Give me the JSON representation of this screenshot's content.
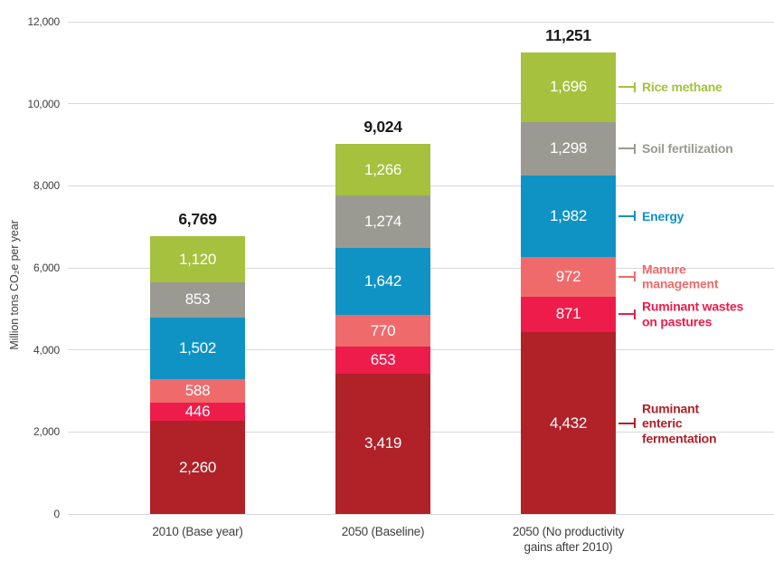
{
  "chart_data": {
    "type": "bar",
    "stacked": true,
    "ylabel": "Million tons CO₂e per year",
    "ylim": [
      0,
      12000
    ],
    "grid": true,
    "legend_position": "right",
    "yticks": [
      {
        "value": 0,
        "label": "0"
      },
      {
        "value": 2000,
        "label": "2,000"
      },
      {
        "value": 4000,
        "label": "4,000"
      },
      {
        "value": 6000,
        "label": "6,000"
      },
      {
        "value": 8000,
        "label": "8,000"
      },
      {
        "value": 10000,
        "label": "10,000"
      },
      {
        "value": 12000,
        "label": "12,000"
      }
    ],
    "categories": [
      [
        "2010 (Base year)"
      ],
      [
        "2050 (Baseline)"
      ],
      [
        "2050 (No productivity",
        "gains after 2010)"
      ]
    ],
    "totals": [
      "6,769",
      "9,024",
      "11,251"
    ],
    "series": [
      {
        "name": "Ruminant enteric fermentation",
        "legend_lines": [
          "Ruminant",
          "enteric",
          "fermentation"
        ],
        "color": "#b02128",
        "values": [
          2260,
          3419,
          4432
        ],
        "value_labels": [
          "2,260",
          "3,419",
          "4,432"
        ]
      },
      {
        "name": "Ruminant wastes on pastures",
        "legend_lines": [
          "Ruminant wastes",
          "on pastures"
        ],
        "color": "#ee1c4b",
        "values": [
          446,
          653,
          871
        ],
        "value_labels": [
          "446",
          "653",
          "871"
        ]
      },
      {
        "name": "Manure management",
        "legend_lines": [
          "Manure",
          "management"
        ],
        "color": "#ef6b6b",
        "values": [
          588,
          770,
          972
        ],
        "value_labels": [
          "588",
          "770",
          "972"
        ]
      },
      {
        "name": "Energy",
        "legend_lines": [
          "Energy"
        ],
        "color": "#0f93c5",
        "values": [
          1502,
          1642,
          1982
        ],
        "value_labels": [
          "1,502",
          "1,642",
          "1,982"
        ]
      },
      {
        "name": "Soil fertilization",
        "legend_lines": [
          "Soil fertilization"
        ],
        "color": "#9b9a92",
        "values": [
          853,
          1274,
          1298
        ],
        "value_labels": [
          "853",
          "1,274",
          "1,298"
        ]
      },
      {
        "name": "Rice methane",
        "legend_lines": [
          "Rice methane"
        ],
        "color": "#a5c13d",
        "values": [
          1120,
          1266,
          1696
        ],
        "value_labels": [
          "1,120",
          "1,266",
          "1,696"
        ]
      }
    ]
  },
  "colors": {
    "gridline": "#d8d8d5",
    "axis_text": "#3e3e3e",
    "total_text": "#1a1a1a",
    "bar_value_text": "#ffffff",
    "background": "#ffffff"
  }
}
